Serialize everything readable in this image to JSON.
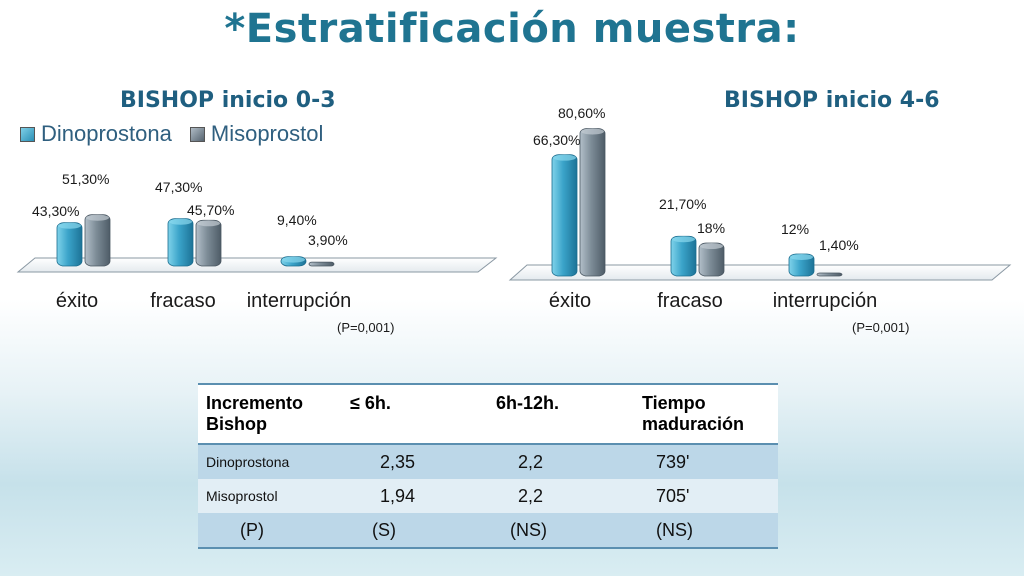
{
  "slide_title": "*Estratificación muestra:",
  "colors": {
    "dinoprostona": "#2f98bf",
    "misoprostol": "#6b7b87",
    "title": "#1f7491"
  },
  "legend": {
    "dinoprostona": "Dinoprostona",
    "misoprostol": "Misoprostol"
  },
  "chart_data": [
    {
      "type": "bar",
      "title": "BISHOP inicio 0-3",
      "categories": [
        "éxito",
        "fracaso",
        "interrupción"
      ],
      "series": [
        {
          "name": "Dinoprostona",
          "values": [
            43.3,
            47.3,
            9.4
          ],
          "labels": [
            "43,30%",
            "47,30%",
            "9,40%"
          ]
        },
        {
          "name": "Misoprostol",
          "values": [
            51.3,
            45.7,
            3.9
          ],
          "labels": [
            "51,30%",
            "45,70%",
            "3,90%"
          ]
        }
      ],
      "ylim": [
        0,
        100
      ],
      "grid": false,
      "legend": "top-left",
      "annotation": "(P=0,001)"
    },
    {
      "type": "bar",
      "title": "BISHOP inicio 4-6",
      "categories": [
        "éxito",
        "fracaso",
        "interrupción"
      ],
      "series": [
        {
          "name": "Dinoprostona",
          "values": [
            66.3,
            21.7,
            12.0
          ],
          "labels": [
            "66,30%",
            "21,70%",
            "12%"
          ]
        },
        {
          "name": "Misoprostol",
          "values": [
            80.6,
            18.0,
            1.4
          ],
          "labels": [
            "80,60%",
            "18%",
            "1,40%"
          ]
        }
      ],
      "ylim": [
        0,
        100
      ],
      "grid": false,
      "annotation": "(P=0,001)"
    }
  ],
  "table": {
    "headers": [
      "Incremento Bishop",
      "≤ 6h.",
      "6h-12h.",
      "Tiempo maduración"
    ],
    "rows": [
      [
        "Dinoprostona",
        "2,35",
        "2,2",
        "739'"
      ],
      [
        "Misoprostol",
        "1,94",
        "2,2",
        "705'"
      ],
      [
        "(P)",
        "(S)",
        "(NS)",
        "(NS)"
      ]
    ]
  }
}
